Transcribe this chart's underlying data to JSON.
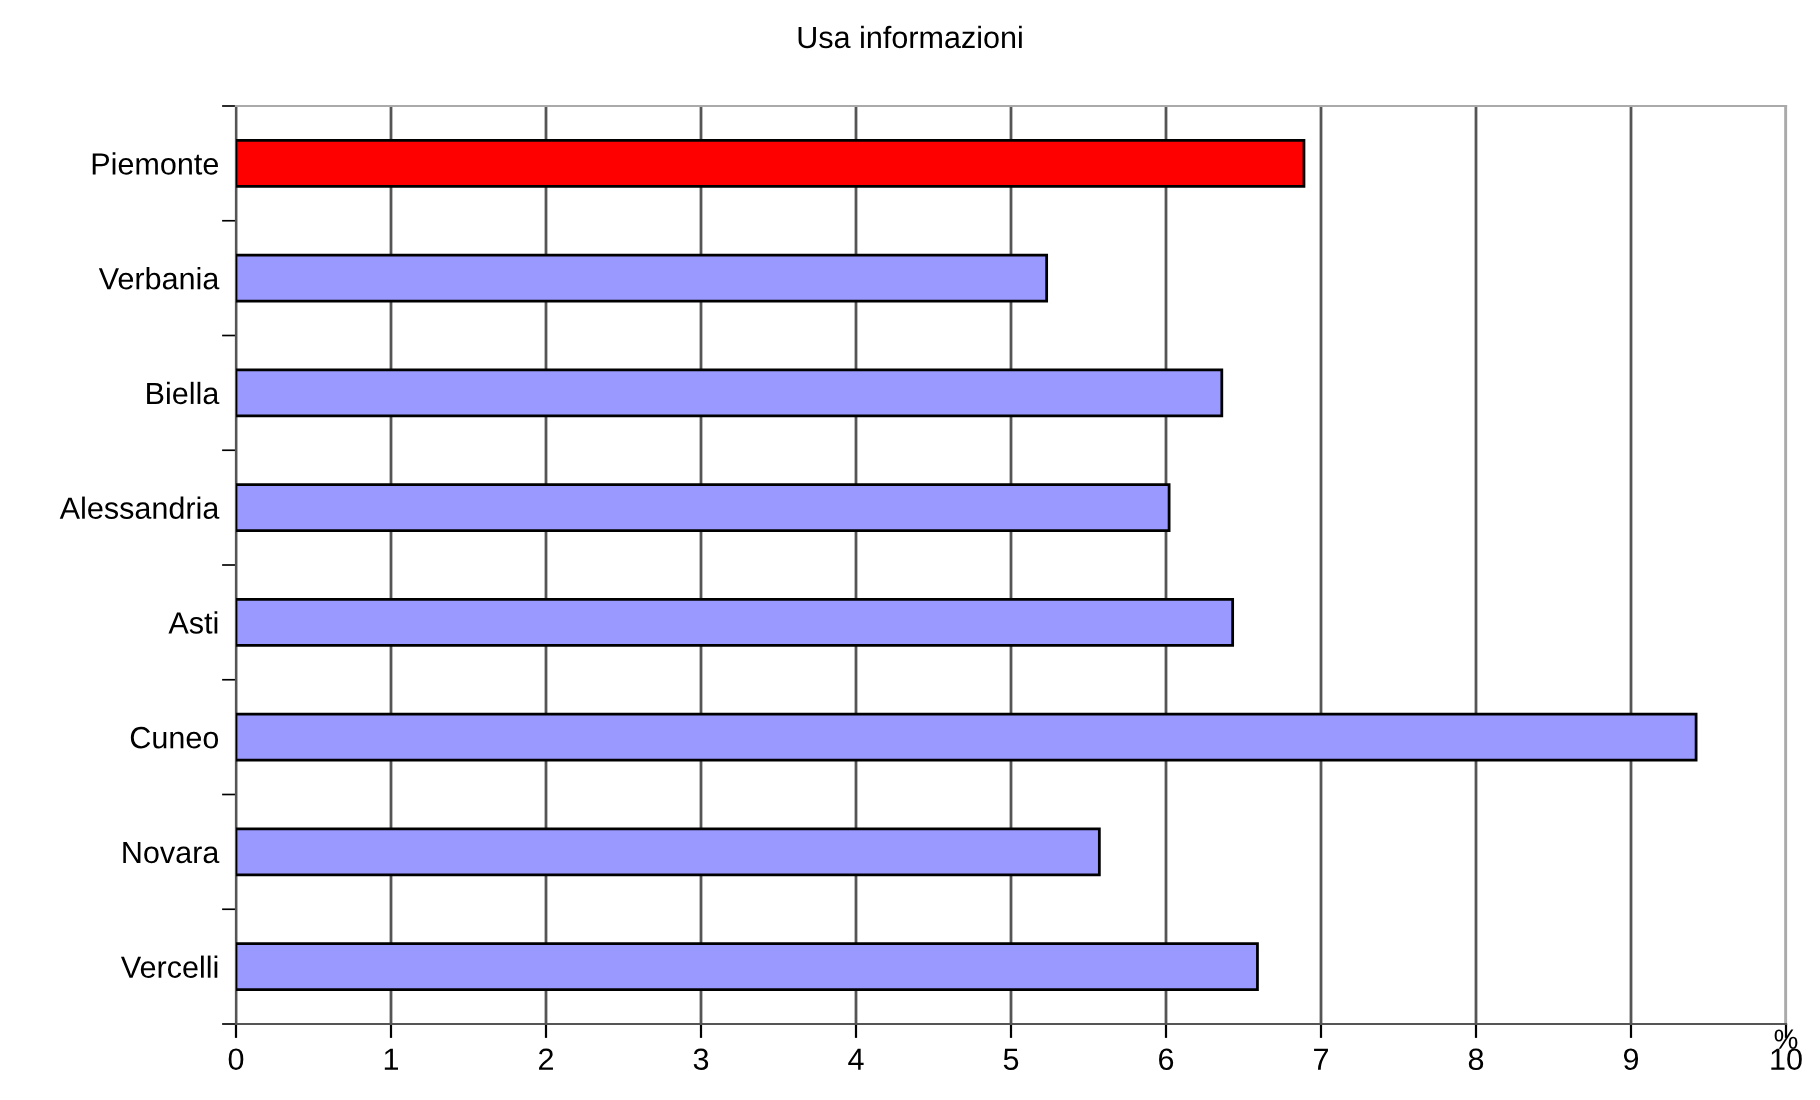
{
  "chart_data": {
    "type": "bar",
    "orientation": "horizontal",
    "title": "Usa informazioni",
    "xlabel": "%",
    "categories": [
      "Piemonte",
      "Verbania",
      "Biella",
      "Alessandria",
      "Asti",
      "Cuneo",
      "Novara",
      "Vercelli"
    ],
    "values": [
      6.89,
      5.23,
      6.36,
      6.02,
      6.43,
      9.42,
      5.57,
      6.59
    ],
    "colors": [
      "#ff0000",
      "#9999ff",
      "#9999ff",
      "#9999ff",
      "#9999ff",
      "#9999ff",
      "#9999ff",
      "#9999ff"
    ],
    "xlim": [
      0,
      10
    ],
    "xticks": [
      0,
      1,
      2,
      3,
      4,
      5,
      6,
      7,
      8,
      9,
      10
    ],
    "grid": "x"
  }
}
